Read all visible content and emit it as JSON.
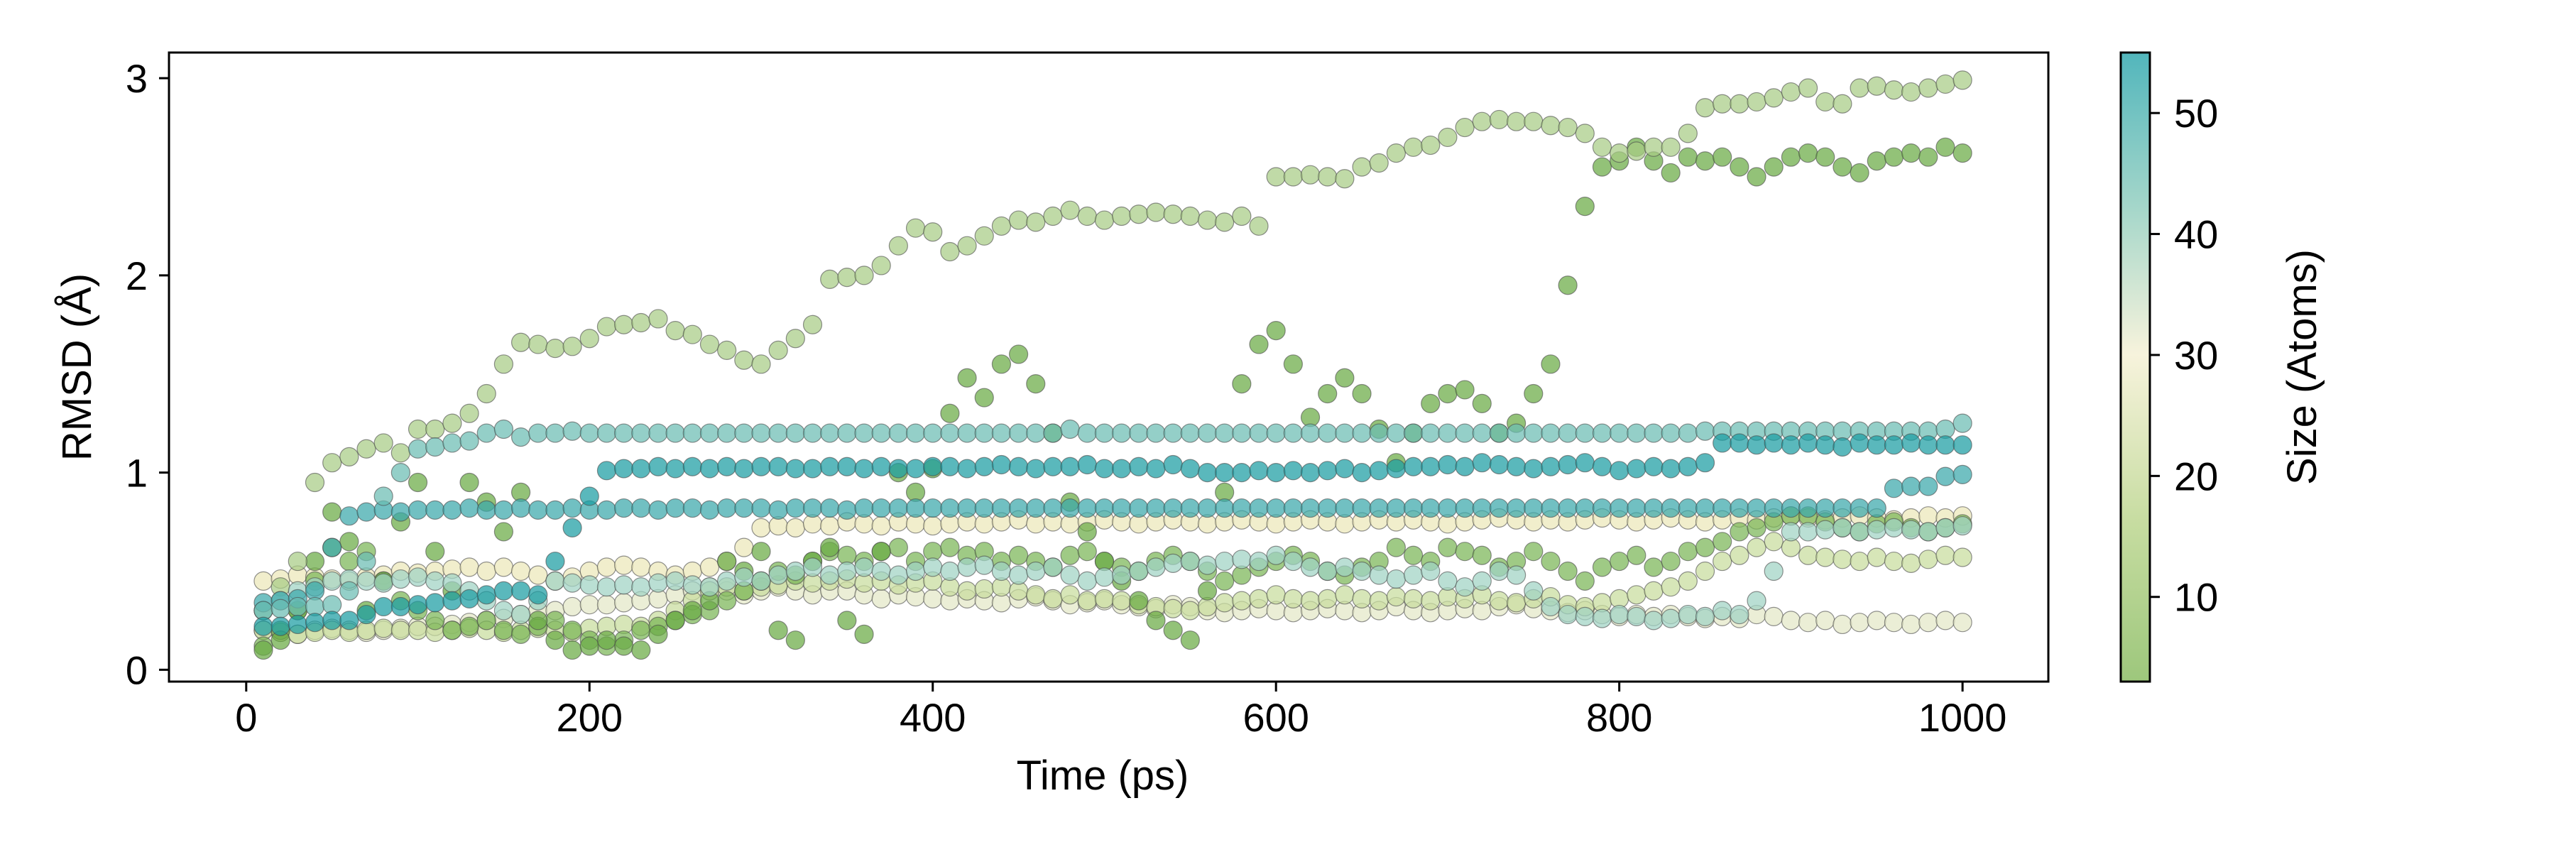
{
  "chart_data": {
    "type": "scatter",
    "title": "",
    "xlabel": "Time (ps)",
    "ylabel": "RMSD (Å)",
    "xlim": [
      -45,
      1050
    ],
    "ylim": [
      -0.06,
      3.13
    ],
    "xticks": [
      0,
      200,
      400,
      600,
      800,
      1000
    ],
    "yticks": [
      0,
      1,
      2,
      3
    ],
    "grid": false,
    "colorbar": {
      "label": "Size (Atoms)",
      "range": [
        3,
        55
      ],
      "ticks": [
        10,
        20,
        30,
        40,
        50
      ],
      "colormap": [
        "#9dc77c",
        "#c6dca0",
        "#f7f3dc",
        "#a6d7ca",
        "#52b6bc"
      ]
    },
    "x": [
      10,
      20,
      30,
      40,
      50,
      60,
      70,
      80,
      90,
      100,
      110,
      120,
      130,
      140,
      150,
      160,
      170,
      180,
      190,
      200,
      210,
      220,
      230,
      240,
      250,
      260,
      270,
      280,
      290,
      300,
      310,
      320,
      330,
      340,
      350,
      360,
      370,
      380,
      390,
      400,
      410,
      420,
      430,
      440,
      450,
      460,
      470,
      480,
      490,
      500,
      510,
      520,
      530,
      540,
      550,
      560,
      570,
      580,
      590,
      600,
      610,
      620,
      630,
      640,
      650,
      660,
      670,
      680,
      690,
      700,
      710,
      720,
      730,
      740,
      750,
      760,
      770,
      780,
      790,
      800,
      810,
      820,
      830,
      840,
      850,
      860,
      870,
      880,
      890,
      900,
      910,
      920,
      930,
      940,
      950,
      960,
      970,
      980,
      990,
      1000
    ],
    "series": [
      {
        "size": 22,
        "color": "#e3e8c6",
        "values": [
          0.2,
          0.19,
          0.18,
          0.2,
          0.21,
          0.2,
          0.19,
          0.2,
          0.21,
          0.22,
          0.22,
          0.23,
          0.24,
          0.25,
          0.26,
          0.28,
          0.3,
          0.3,
          0.32,
          0.33,
          0.33,
          0.34,
          0.35,
          0.36,
          0.38,
          0.4,
          0.42,
          0.4,
          0.38,
          0.4,
          0.42,
          0.4,
          0.38,
          0.4,
          0.4,
          0.38,
          0.36,
          0.38,
          0.37,
          0.36,
          0.35,
          0.36,
          0.35,
          0.34,
          0.36,
          0.37,
          0.35,
          0.33,
          0.34,
          0.35,
          0.33,
          0.32,
          0.31,
          0.33,
          0.32,
          0.3,
          0.29,
          0.3,
          0.31,
          0.3,
          0.29,
          0.3,
          0.31,
          0.3,
          0.29,
          0.3,
          0.32,
          0.3,
          0.29,
          0.3,
          0.31,
          0.3,
          0.32,
          0.33,
          0.31,
          0.3,
          0.29,
          0.3,
          0.28,
          0.27,
          0.28,
          0.27,
          0.28,
          0.27,
          0.26,
          0.27,
          0.26,
          0.28,
          0.27,
          0.25,
          0.24,
          0.25,
          0.23,
          0.24,
          0.25,
          0.24,
          0.23,
          0.24,
          0.25,
          0.24
        ]
      },
      {
        "size": 17,
        "color": "#c8dc9c",
        "values": [
          0.2,
          0.19,
          0.18,
          0.19,
          0.2,
          0.19,
          0.2,
          0.21,
          0.2,
          0.2,
          0.19,
          0.2,
          0.21,
          0.2,
          0.19,
          0.2,
          0.21,
          0.2,
          0.19,
          0.21,
          0.22,
          0.23,
          0.22,
          0.25,
          0.3,
          0.35,
          0.4,
          0.42,
          0.4,
          0.42,
          0.43,
          0.45,
          0.44,
          0.45,
          0.46,
          0.44,
          0.45,
          0.43,
          0.44,
          0.45,
          0.42,
          0.4,
          0.41,
          0.42,
          0.4,
          0.38,
          0.36,
          0.38,
          0.35,
          0.36,
          0.35,
          0.33,
          0.32,
          0.31,
          0.3,
          0.32,
          0.34,
          0.35,
          0.36,
          0.38,
          0.36,
          0.35,
          0.36,
          0.38,
          0.36,
          0.35,
          0.37,
          0.36,
          0.35,
          0.37,
          0.36,
          0.38,
          0.35,
          0.34,
          0.36,
          0.37,
          0.33,
          0.32,
          0.34,
          0.36,
          0.38,
          0.4,
          0.42,
          0.45,
          0.5,
          0.55,
          0.58,
          0.62,
          0.65,
          0.62,
          0.58,
          0.57,
          0.56,
          0.55,
          0.57,
          0.55,
          0.54,
          0.56,
          0.58,
          0.57
        ]
      },
      {
        "size": 26,
        "color": "#ebe8b8",
        "values": [
          0.45,
          0.46,
          0.48,
          0.47,
          0.46,
          0.45,
          0.47,
          0.48,
          0.5,
          0.49,
          0.5,
          0.51,
          0.52,
          0.5,
          0.52,
          0.5,
          0.48,
          0.45,
          0.47,
          0.5,
          0.52,
          0.53,
          0.52,
          0.5,
          0.48,
          0.5,
          0.52,
          0.55,
          0.62,
          0.72,
          0.73,
          0.72,
          0.74,
          0.73,
          0.75,
          0.74,
          0.73,
          0.75,
          0.74,
          0.73,
          0.74,
          0.75,
          0.74,
          0.75,
          0.76,
          0.74,
          0.75,
          0.74,
          0.75,
          0.76,
          0.75,
          0.74,
          0.75,
          0.76,
          0.75,
          0.74,
          0.75,
          0.76,
          0.75,
          0.74,
          0.75,
          0.76,
          0.75,
          0.74,
          0.75,
          0.76,
          0.75,
          0.76,
          0.75,
          0.74,
          0.75,
          0.76,
          0.77,
          0.76,
          0.75,
          0.76,
          0.75,
          0.76,
          0.77,
          0.76,
          0.75,
          0.76,
          0.77,
          0.76,
          0.75,
          0.76,
          0.77,
          0.76,
          0.77,
          0.78,
          0.77,
          0.76,
          0.77,
          0.78,
          0.77,
          0.76,
          0.77,
          0.78,
          0.77,
          0.78
        ]
      },
      {
        "size": 6,
        "color": "#7ab556",
        "values": [
          0.12,
          0.2,
          0.3,
          0.45,
          0.62,
          0.55,
          0.6,
          0.45,
          0.35,
          0.3,
          0.25,
          0.2,
          0.22,
          0.25,
          0.2,
          0.18,
          0.22,
          0.25,
          0.2,
          0.15,
          0.12,
          0.15,
          0.2,
          0.22,
          0.25,
          0.28,
          0.3,
          0.35,
          0.4,
          0.45,
          0.5,
          0.48,
          0.55,
          0.6,
          0.58,
          0.55,
          0.6,
          0.62,
          0.55,
          0.6,
          0.62,
          0.58,
          0.6,
          0.55,
          0.58,
          0.55,
          0.52,
          0.58,
          0.6,
          0.55,
          0.52,
          0.5,
          0.55,
          0.58,
          0.55,
          0.5,
          0.45,
          0.48,
          0.52,
          0.55,
          0.58,
          0.55,
          0.5,
          0.48,
          0.52,
          0.55,
          0.62,
          0.58,
          0.55,
          0.62,
          0.6,
          0.58,
          0.52,
          0.55,
          0.6,
          0.55,
          0.5,
          0.45,
          0.52,
          0.55,
          0.58,
          0.52,
          0.55,
          0.6,
          0.62,
          0.65,
          0.7,
          0.72,
          0.75,
          0.78,
          0.78,
          0.75,
          0.72,
          0.7,
          0.74,
          0.75,
          0.72,
          0.7,
          0.72,
          0.74
        ]
      },
      {
        "size": 3,
        "color": "#6aab44",
        "values": [
          0.1,
          0.15,
          0.3,
          0.55,
          0.8,
          0.65,
          0.3,
          0.45,
          0.75,
          0.95,
          0.6,
          0.4,
          0.95,
          0.85,
          0.7,
          0.9,
          0.25,
          0.15,
          0.1,
          0.12,
          0.15,
          0.12,
          0.1,
          0.18,
          0.25,
          0.3,
          0.35,
          0.55,
          0.5,
          0.6,
          0.2,
          0.15,
          0.55,
          0.62,
          0.25,
          0.18,
          0.6,
          1.0,
          0.9,
          1.02,
          1.3,
          1.48,
          1.38,
          1.55,
          1.6,
          1.45,
          1.2,
          0.85,
          0.7,
          0.55,
          0.45,
          0.35,
          0.25,
          0.2,
          0.15,
          0.4,
          0.9,
          1.45,
          1.65,
          1.72,
          1.55,
          1.28,
          1.4,
          1.48,
          1.4,
          1.22,
          1.05,
          1.2,
          1.35,
          1.4,
          1.42,
          1.35,
          1.2,
          1.25,
          1.4,
          1.55,
          1.95,
          2.35,
          2.55,
          2.58,
          2.65,
          2.58,
          2.52,
          2.6,
          2.58,
          2.6,
          2.55,
          2.5,
          2.55,
          2.6,
          2.62,
          2.6,
          2.55,
          2.52,
          2.58,
          2.6,
          2.62,
          2.6,
          2.65,
          2.62
        ]
      },
      {
        "size": 12,
        "color": "#a8cc85",
        "values": [
          0.3,
          0.42,
          0.55,
          0.95,
          1.05,
          1.08,
          1.12,
          1.15,
          1.1,
          1.22,
          1.22,
          1.25,
          1.3,
          1.4,
          1.55,
          1.66,
          1.65,
          1.63,
          1.64,
          1.68,
          1.74,
          1.75,
          1.76,
          1.78,
          1.72,
          1.7,
          1.65,
          1.62,
          1.57,
          1.55,
          1.62,
          1.68,
          1.75,
          1.98,
          1.99,
          2.0,
          2.05,
          2.15,
          2.24,
          2.22,
          2.12,
          2.15,
          2.2,
          2.25,
          2.28,
          2.27,
          2.3,
          2.33,
          2.3,
          2.28,
          2.3,
          2.31,
          2.32,
          2.31,
          2.3,
          2.28,
          2.27,
          2.3,
          2.25,
          2.5,
          2.5,
          2.51,
          2.5,
          2.49,
          2.55,
          2.57,
          2.62,
          2.65,
          2.66,
          2.7,
          2.75,
          2.78,
          2.79,
          2.78,
          2.78,
          2.76,
          2.75,
          2.72,
          2.65,
          2.62,
          2.63,
          2.65,
          2.65,
          2.72,
          2.85,
          2.87,
          2.87,
          2.88,
          2.9,
          2.93,
          2.95,
          2.88,
          2.87,
          2.95,
          2.96,
          2.94,
          2.93,
          2.95,
          2.97,
          2.99
        ]
      },
      {
        "size": 40,
        "color": "#a0d2c4",
        "values": [
          0.3,
          0.35,
          0.4,
          0.42,
          0.45,
          0.46,
          0.45,
          0.44,
          0.46,
          0.47,
          0.45,
          0.44,
          0.4,
          0.35,
          0.3,
          0.28,
          0.35,
          0.45,
          0.44,
          0.43,
          0.42,
          0.43,
          0.42,
          0.44,
          0.45,
          0.43,
          0.42,
          0.45,
          0.47,
          0.45,
          0.48,
          0.5,
          0.52,
          0.48,
          0.5,
          0.52,
          0.5,
          0.48,
          0.5,
          0.52,
          0.5,
          0.52,
          0.53,
          0.5,
          0.48,
          0.5,
          0.52,
          0.48,
          0.45,
          0.47,
          0.48,
          0.5,
          0.52,
          0.54,
          0.55,
          0.53,
          0.55,
          0.56,
          0.55,
          0.58,
          0.55,
          0.52,
          0.5,
          0.52,
          0.5,
          0.48,
          0.46,
          0.48,
          0.5,
          0.45,
          0.42,
          0.45,
          0.5,
          0.48,
          0.4,
          0.32,
          0.28,
          0.27,
          0.26,
          0.28,
          0.27,
          0.25,
          0.26,
          0.28,
          0.27,
          0.3,
          0.28,
          0.35,
          0.5,
          0.7,
          0.7,
          0.71,
          0.72,
          0.7,
          0.71,
          0.72,
          0.71,
          0.7,
          0.72,
          0.73
        ]
      },
      {
        "size": 48,
        "color": "#3aa8aa",
        "values": [
          0.34,
          0.35,
          0.36,
          0.4,
          0.62,
          0.78,
          0.8,
          0.81,
          0.8,
          0.81,
          0.81,
          0.81,
          0.82,
          0.81,
          0.81,
          0.82,
          0.81,
          0.81,
          0.82,
          0.81,
          0.81,
          0.82,
          0.82,
          0.81,
          0.82,
          0.82,
          0.81,
          0.82,
          0.82,
          0.82,
          0.81,
          0.82,
          0.82,
          0.82,
          0.81,
          0.82,
          0.82,
          0.82,
          0.82,
          0.82,
          0.82,
          0.82,
          0.82,
          0.82,
          0.82,
          0.82,
          0.82,
          0.82,
          0.82,
          0.82,
          0.82,
          0.82,
          0.82,
          0.82,
          0.82,
          0.82,
          0.82,
          0.82,
          0.82,
          0.82,
          0.82,
          0.82,
          0.82,
          0.82,
          0.82,
          0.82,
          0.82,
          0.82,
          0.82,
          0.82,
          0.82,
          0.82,
          0.82,
          0.82,
          0.82,
          0.82,
          0.82,
          0.82,
          0.82,
          0.82,
          0.82,
          0.82,
          0.82,
          0.82,
          0.82,
          0.82,
          0.82,
          0.82,
          0.82,
          0.82,
          0.82,
          0.82,
          0.82,
          0.82,
          0.82,
          0.92,
          0.93,
          0.93,
          0.98,
          0.99
        ]
      },
      {
        "size": 45,
        "color": "#6bbcb3",
        "values": [
          0.3,
          0.31,
          0.32,
          0.32,
          0.33,
          0.4,
          0.55,
          0.88,
          1.0,
          1.12,
          1.13,
          1.15,
          1.16,
          1.2,
          1.22,
          1.18,
          1.2,
          1.2,
          1.21,
          1.2,
          1.2,
          1.2,
          1.2,
          1.2,
          1.2,
          1.2,
          1.2,
          1.2,
          1.2,
          1.2,
          1.2,
          1.2,
          1.2,
          1.2,
          1.2,
          1.2,
          1.2,
          1.2,
          1.2,
          1.2,
          1.2,
          1.2,
          1.2,
          1.2,
          1.2,
          1.2,
          1.2,
          1.22,
          1.2,
          1.2,
          1.2,
          1.2,
          1.2,
          1.2,
          1.2,
          1.2,
          1.2,
          1.2,
          1.2,
          1.2,
          1.2,
          1.2,
          1.2,
          1.2,
          1.2,
          1.2,
          1.2,
          1.2,
          1.2,
          1.2,
          1.2,
          1.2,
          1.2,
          1.2,
          1.2,
          1.2,
          1.2,
          1.2,
          1.2,
          1.2,
          1.2,
          1.2,
          1.2,
          1.2,
          1.21,
          1.21,
          1.21,
          1.21,
          1.21,
          1.21,
          1.21,
          1.21,
          1.21,
          1.21,
          1.21,
          1.21,
          1.21,
          1.21,
          1.22,
          1.25
        ]
      },
      {
        "size": 52,
        "color": "#1a9da2",
        "values": [
          0.22,
          0.22,
          0.23,
          0.24,
          0.25,
          0.25,
          0.28,
          0.32,
          0.32,
          0.33,
          0.34,
          0.35,
          0.36,
          0.38,
          0.4,
          0.4,
          0.38,
          0.55,
          0.72,
          0.88,
          1.01,
          1.02,
          1.02,
          1.03,
          1.02,
          1.03,
          1.02,
          1.03,
          1.02,
          1.03,
          1.03,
          1.02,
          1.02,
          1.03,
          1.03,
          1.02,
          1.03,
          1.02,
          1.02,
          1.03,
          1.03,
          1.02,
          1.03,
          1.04,
          1.03,
          1.02,
          1.03,
          1.03,
          1.04,
          1.02,
          1.02,
          1.03,
          1.02,
          1.04,
          1.02,
          1.0,
          1.0,
          1.0,
          1.01,
          1.0,
          1.01,
          1.0,
          1.01,
          1.02,
          1.0,
          1.01,
          1.02,
          1.03,
          1.03,
          1.04,
          1.03,
          1.05,
          1.04,
          1.03,
          1.02,
          1.03,
          1.04,
          1.05,
          1.03,
          1.01,
          1.02,
          1.03,
          1.02,
          1.03,
          1.05,
          1.15,
          1.15,
          1.14,
          1.15,
          1.14,
          1.15,
          1.14,
          1.13,
          1.15,
          1.14,
          1.14,
          1.15,
          1.14,
          1.14,
          1.14
        ]
      }
    ]
  }
}
